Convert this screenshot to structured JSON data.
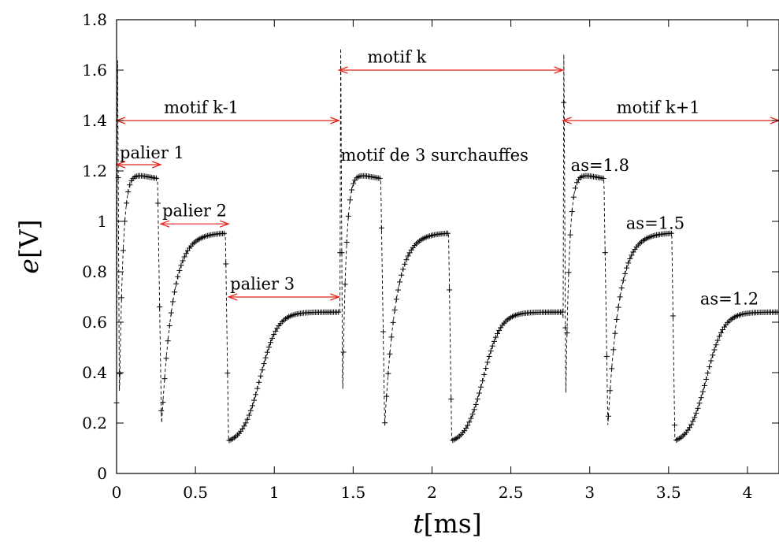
{
  "chart_data": {
    "type": "line",
    "title": "",
    "xlabel": {
      "italic": "t",
      "unit": "[ms]"
    },
    "ylabel": {
      "italic": "e",
      "unit": "[V]"
    },
    "xlim": [
      0,
      4.2
    ],
    "ylim": [
      0,
      1.8
    ],
    "xticks": [
      "0",
      "0.5",
      "1",
      "1.5",
      "2",
      "2.5",
      "3",
      "3.5",
      "4"
    ],
    "xtick_values": [
      0,
      0.5,
      1,
      1.5,
      2,
      2.5,
      3,
      3.5,
      4
    ],
    "yticks": [
      "0",
      "0.2",
      "0.4",
      "0.6",
      "0.8",
      "1",
      "1.2",
      "1.4",
      "1.6",
      "1.8"
    ],
    "ytick_values": [
      0,
      0.2,
      0.4,
      0.6,
      0.8,
      1,
      1.2,
      1.4,
      1.6,
      1.8
    ],
    "grid": false,
    "marker": "+",
    "period_ms": 1.415,
    "series_profile": {
      "spike": {
        "t": 0.0,
        "rise_to": 1.71,
        "fall_to": 0.28
      },
      "plateaus": [
        {
          "level": 1.17,
          "peak": 1.19,
          "start": 0.0,
          "end": 0.26,
          "valley": 0.19
        },
        {
          "level": 0.955,
          "start": 0.28,
          "end": 0.69,
          "valley": 0.13
        },
        {
          "level": 0.64,
          "start": 0.71,
          "end": 1.38
        }
      ]
    },
    "annotations": [
      {
        "text": "motif k-1",
        "x": 0.3,
        "y": 1.43
      },
      {
        "text": "motif k",
        "x": 1.59,
        "y": 1.63
      },
      {
        "text": "motif k+1",
        "x": 3.17,
        "y": 1.43
      },
      {
        "text": "motif de 3 surchauffes",
        "x": 1.42,
        "y": 1.24
      },
      {
        "text": "palier 1",
        "x": 0.02,
        "y": 1.25
      },
      {
        "text": "palier 2",
        "x": 0.29,
        "y": 1.02
      },
      {
        "text": "palier 3",
        "x": 0.72,
        "y": 0.73
      },
      {
        "text": "as=1.8",
        "x": 2.88,
        "y": 1.2
      },
      {
        "text": "as=1.5",
        "x": 3.23,
        "y": 0.97
      },
      {
        "text": "as=1.2",
        "x": 3.7,
        "y": 0.67
      }
    ],
    "range_arrows": [
      {
        "x0": 0.0,
        "x1": 1.41,
        "y": 1.4
      },
      {
        "x0": 1.41,
        "x1": 2.83,
        "y": 1.6
      },
      {
        "x0": 2.83,
        "x1": 4.2,
        "y": 1.4
      },
      {
        "x0": 0.0,
        "x1": 0.28,
        "y": 1.225
      },
      {
        "x0": 0.28,
        "x1": 0.71,
        "y": 0.99
      },
      {
        "x0": 0.71,
        "x1": 1.41,
        "y": 0.7
      }
    ]
  }
}
